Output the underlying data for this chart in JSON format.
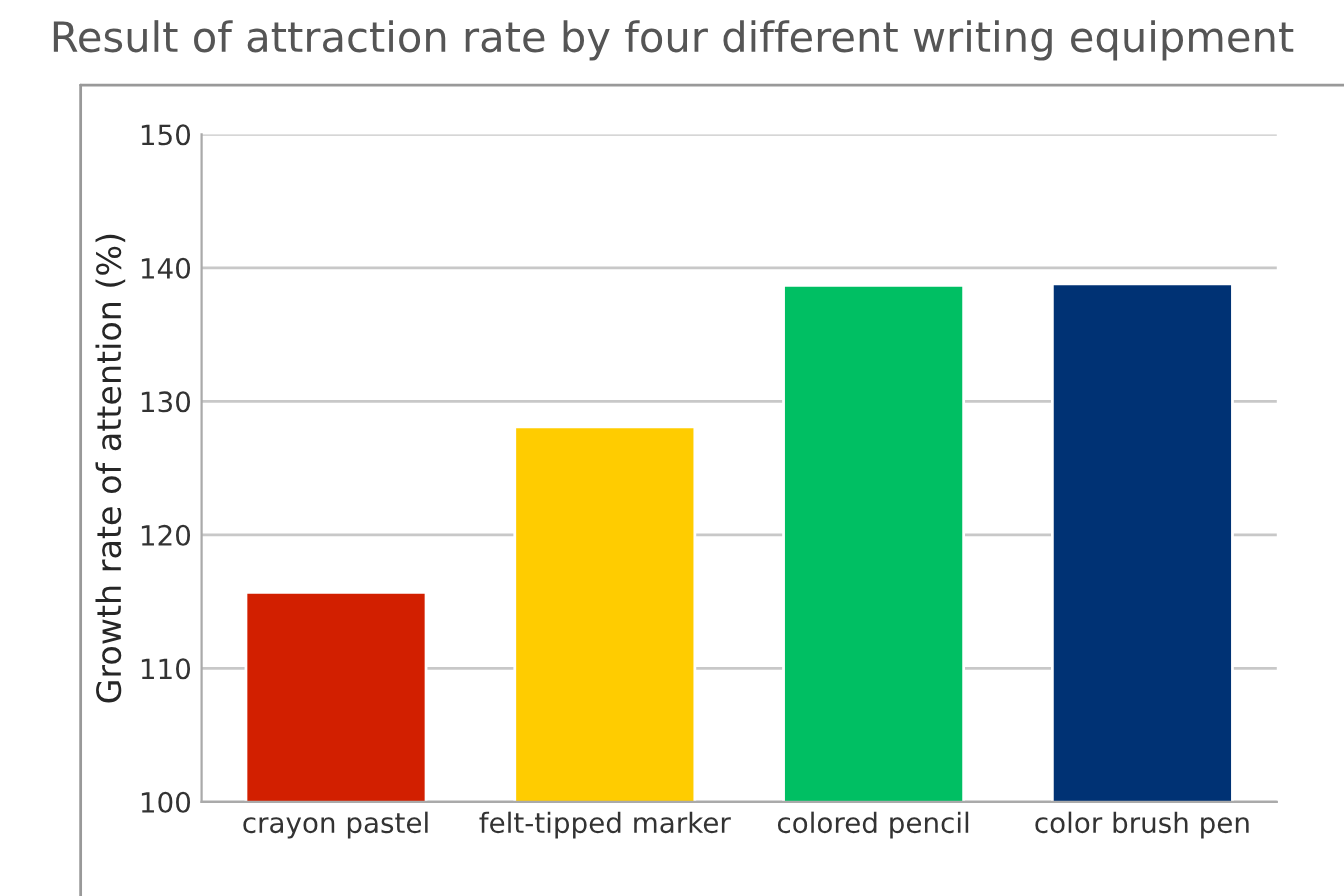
{
  "chart_data": {
    "type": "bar",
    "title": "Result of attraction rate by four different writing equipment",
    "ylabel": "Growth rate of attention (%)",
    "categories": [
      "crayon pastel",
      "felt-tipped marker",
      "colored pencil",
      "color brush pen"
    ],
    "values": [
      115.7,
      128.1,
      138.7,
      138.8
    ],
    "colors": [
      "#d21f00",
      "#ffcc00",
      "#00bf63",
      "#003274"
    ],
    "ylim": [
      100,
      150
    ],
    "yticks": [
      100,
      110,
      120,
      130,
      140,
      150
    ],
    "grid": "y",
    "legend": false
  }
}
